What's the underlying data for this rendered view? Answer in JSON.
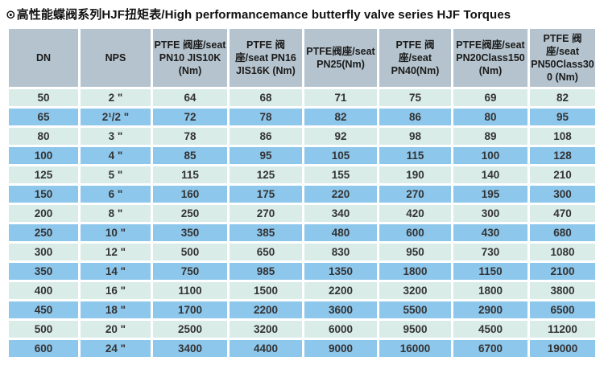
{
  "header": {
    "bullet": "⊙",
    "title": "高性能蝶阀系列HJF扭矩表/High performancemance butterfly valve series HJF Torques"
  },
  "colors": {
    "header_bg": "#b4c3cd",
    "row_light": "#d9ece8",
    "row_blue": "#8ec7ec",
    "text": "#333333"
  },
  "table": {
    "headers": [
      "DN",
      "NPS",
      "PTFE 阀座/seat PN10 JIS10K (Nm)",
      "PTFE 阀座/seat PN16 JIS16K (Nm)",
      "PTFE阀座/seat PN25(Nm)",
      "PTFE 阀座/seat PN40(Nm)",
      "PTFE阀座/seat PN20Class150 (Nm)",
      "PTFE 阀座/seat PN50Class300 (Nm)"
    ],
    "rows": [
      {
        "dn": "50",
        "nps": "2 \"",
        "values": [
          "64",
          "68",
          "71",
          "75",
          "69",
          "82"
        ]
      },
      {
        "dn": "65",
        "nps": "2¹/2 \"",
        "values": [
          "72",
          "78",
          "82",
          "86",
          "80",
          "95"
        ]
      },
      {
        "dn": "80",
        "nps": "3 \"",
        "values": [
          "78",
          "86",
          "92",
          "98",
          "89",
          "108"
        ]
      },
      {
        "dn": "100",
        "nps": "4 \"",
        "values": [
          "85",
          "95",
          "105",
          "115",
          "100",
          "128"
        ]
      },
      {
        "dn": "125",
        "nps": "5 \"",
        "values": [
          "115",
          "125",
          "155",
          "190",
          "140",
          "210"
        ]
      },
      {
        "dn": "150",
        "nps": "6 \"",
        "values": [
          "160",
          "175",
          "220",
          "270",
          "195",
          "300"
        ]
      },
      {
        "dn": "200",
        "nps": "8 \"",
        "values": [
          "250",
          "270",
          "340",
          "420",
          "300",
          "470"
        ]
      },
      {
        "dn": "250",
        "nps": "10 \"",
        "values": [
          "350",
          "385",
          "480",
          "600",
          "430",
          "680"
        ]
      },
      {
        "dn": "300",
        "nps": "12 \"",
        "values": [
          "500",
          "650",
          "830",
          "950",
          "730",
          "1080"
        ]
      },
      {
        "dn": "350",
        "nps": "14 \"",
        "values": [
          "750",
          "985",
          "1350",
          "1800",
          "1150",
          "2100"
        ]
      },
      {
        "dn": "400",
        "nps": "16 \"",
        "values": [
          "1100",
          "1500",
          "2200",
          "3200",
          "1800",
          "3800"
        ]
      },
      {
        "dn": "450",
        "nps": "18 \"",
        "values": [
          "1700",
          "2200",
          "3600",
          "5500",
          "2900",
          "6500"
        ]
      },
      {
        "dn": "500",
        "nps": "20 \"",
        "values": [
          "2500",
          "3200",
          "6000",
          "9500",
          "4500",
          "11200"
        ]
      },
      {
        "dn": "600",
        "nps": "24 \"",
        "values": [
          "3400",
          "4400",
          "9000",
          "16000",
          "6700",
          "19000"
        ]
      }
    ]
  }
}
